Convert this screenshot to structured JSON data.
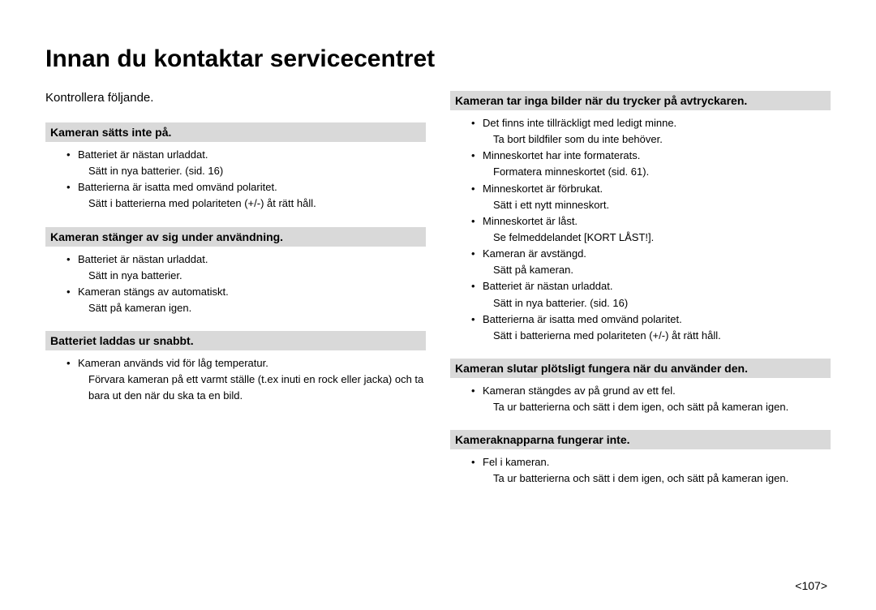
{
  "page": {
    "title": "Innan du kontaktar servicecentret",
    "intro": "Kontrollera följande.",
    "pageNumber": "<107>"
  },
  "colors": {
    "sectionBg": "#d9d9d9",
    "text": "#000000",
    "bg": "#ffffff"
  },
  "left": {
    "sections": [
      {
        "head": "Kameran sätts inte på.",
        "items": [
          {
            "t": "Batteriet är nästan urladdat.",
            "s": "Sätt in nya batterier. (sid. 16)"
          },
          {
            "t": "Batterierna är isatta med omvänd polaritet.",
            "s": "Sätt i batterierna med polariteten (+/-) åt rätt håll."
          }
        ]
      },
      {
        "head": "Kameran stänger av sig under användning.",
        "items": [
          {
            "t": "Batteriet är nästan urladdat.",
            "s": "Sätt in nya batterier."
          },
          {
            "t": "Kameran stängs av automatiskt.",
            "s": "Sätt på kameran igen."
          }
        ]
      },
      {
        "head": "Batteriet laddas ur snabbt.",
        "items": [
          {
            "t": "Kameran används vid för låg temperatur.",
            "s": "Förvara kameran på ett varmt ställe (t.ex inuti en rock eller jacka) och ta bara ut den när du ska ta en bild."
          }
        ]
      }
    ]
  },
  "right": {
    "sections": [
      {
        "head": "Kameran tar inga bilder när du trycker på avtryckaren.",
        "items": [
          {
            "t": "Det finns inte tillräckligt med ledigt minne.",
            "s": "Ta bort bildfiler som du inte behöver."
          },
          {
            "t": "Minneskortet har inte formaterats.",
            "s": "Formatera minneskortet (sid. 61)."
          },
          {
            "t": "Minneskortet är förbrukat.",
            "s": "Sätt i ett nytt minneskort."
          },
          {
            "t": "Minneskortet är låst.",
            "s": "Se felmeddelandet [KORT LÅST!]."
          },
          {
            "t": "Kameran är avstängd.",
            "s": "Sätt på kameran."
          },
          {
            "t": "Batteriet är nästan urladdat.",
            "s": "Sätt in nya batterier. (sid. 16)"
          },
          {
            "t": "Batterierna är isatta med omvänd polaritet.",
            "s": "Sätt i batterierna med polariteten (+/-) åt rätt håll."
          }
        ]
      },
      {
        "head": "Kameran slutar plötsligt fungera när du använder den.",
        "items": [
          {
            "t": "Kameran stängdes av på grund av ett fel.",
            "s": "Ta ur batterierna och sätt i dem igen, och sätt på kameran igen."
          }
        ]
      },
      {
        "head": "Kameraknapparna fungerar inte.",
        "items": [
          {
            "t": "Fel i kameran.",
            "s": "Ta ur batterierna och sätt i dem igen, och sätt på kameran igen."
          }
        ]
      }
    ]
  }
}
